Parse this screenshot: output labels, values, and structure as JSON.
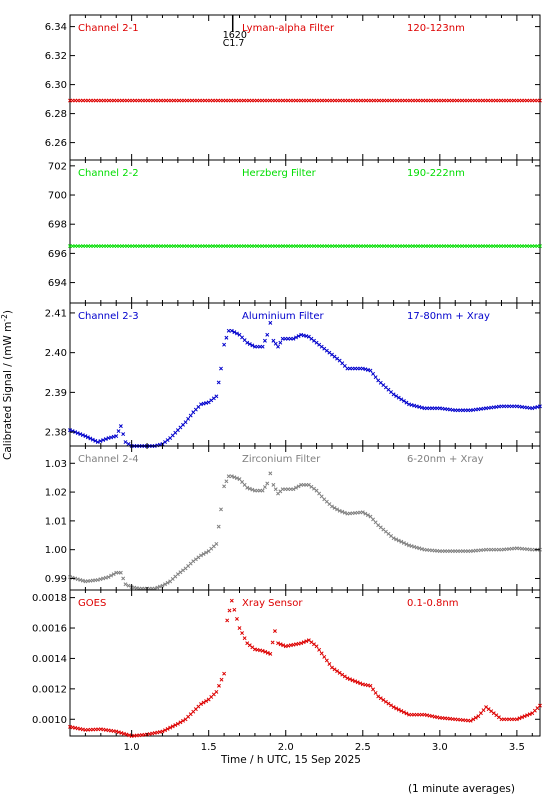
{
  "figure": {
    "ylabel": "Calibrated Signal / (mW m",
    "ylabel_sup": "-2",
    "ylabel_close": ")",
    "xlabel": "Time / h UTC, 15 Sep 2025",
    "footnote": "(1 minute averages)",
    "marker_labels": [
      "1620",
      "C1.7"
    ],
    "x_ticks": [
      "1.0",
      "1.5",
      "2.0",
      "2.5",
      "3.0",
      "3.5"
    ]
  },
  "chart_data": [
    {
      "type": "scatter",
      "panel": "Channel 2-1",
      "labels": [
        "Channel 2-1",
        "Lyman-alpha Filter",
        "120-123nm"
      ],
      "color": "#dd0000",
      "xlim": [
        0.6,
        3.65
      ],
      "ylim": [
        6.248,
        6.348
      ],
      "ytick_values": [
        6.26,
        6.28,
        6.3,
        6.32,
        6.34
      ],
      "ytick_labels": [
        "6.26",
        "6.28",
        "6.30",
        "6.32",
        "6.34"
      ],
      "x": [
        0.6,
        3.65
      ],
      "y": [
        6.289,
        6.289
      ]
    },
    {
      "type": "scatter",
      "panel": "Channel 2-2",
      "labels": [
        "Channel 2-2",
        "Herzberg Filter",
        "190-222nm"
      ],
      "color": "#00dd00",
      "xlim": [
        0.6,
        3.65
      ],
      "ylim": [
        692.6,
        702.4
      ],
      "ytick_values": [
        694,
        696,
        698,
        700,
        702
      ],
      "ytick_labels": [
        "694",
        "696",
        "698",
        "700",
        "702"
      ],
      "x": [
        0.6,
        3.65
      ],
      "y": [
        696.5,
        696.5
      ]
    },
    {
      "type": "scatter",
      "panel": "Channel 2-3",
      "labels": [
        "Channel 2-3",
        "Aluminium Filter",
        "17-80nm + Xray"
      ],
      "color": "#0000cc",
      "xlim": [
        0.6,
        3.65
      ],
      "ylim": [
        2.3765,
        2.4125
      ],
      "ytick_values": [
        2.38,
        2.39,
        2.4,
        2.41
      ],
      "ytick_labels": [
        "2.38",
        "2.39",
        "2.40",
        "2.41"
      ],
      "x": [
        0.6,
        0.7,
        0.78,
        0.85,
        0.9,
        0.93,
        0.96,
        1.0,
        1.05,
        1.15,
        1.2,
        1.25,
        1.3,
        1.35,
        1.4,
        1.45,
        1.5,
        1.55,
        1.58,
        1.6,
        1.63,
        1.65,
        1.7,
        1.75,
        1.8,
        1.85,
        1.88,
        1.9,
        1.92,
        1.95,
        1.98,
        2.05,
        2.1,
        2.15,
        2.2,
        2.25,
        2.3,
        2.35,
        2.4,
        2.5,
        2.55,
        2.6,
        2.7,
        2.8,
        2.9,
        3.0,
        3.1,
        3.2,
        3.3,
        3.4,
        3.5,
        3.6,
        3.65
      ],
      "y": [
        2.3805,
        2.379,
        2.3775,
        2.3785,
        2.379,
        2.3815,
        2.3775,
        2.3765,
        2.3765,
        2.3765,
        2.377,
        2.3785,
        2.3805,
        2.3825,
        2.385,
        2.387,
        2.3875,
        2.389,
        2.396,
        2.402,
        2.4055,
        2.4055,
        2.4045,
        2.4025,
        2.4015,
        2.4015,
        2.4045,
        2.4075,
        2.403,
        2.4015,
        2.4035,
        2.4035,
        2.4045,
        2.404,
        2.4025,
        2.401,
        2.3995,
        2.398,
        2.396,
        2.396,
        2.3955,
        2.393,
        2.3895,
        2.387,
        2.386,
        2.386,
        2.3855,
        2.3855,
        2.386,
        2.3865,
        2.3865,
        2.386,
        2.3865
      ]
    },
    {
      "type": "scatter",
      "panel": "Channel 2-4",
      "labels": [
        "Channel 2-4",
        "Zirconium Filter",
        "6-20nm + Xray"
      ],
      "color": "#808080",
      "xlim": [
        0.6,
        3.65
      ],
      "ylim": [
        0.986,
        1.036
      ],
      "ytick_values": [
        0.99,
        1.0,
        1.01,
        1.02,
        1.03
      ],
      "ytick_labels": [
        "0.99",
        "1.00",
        "1.01",
        "1.02",
        "1.03"
      ],
      "x": [
        0.6,
        0.7,
        0.78,
        0.85,
        0.9,
        0.93,
        0.96,
        1.0,
        1.05,
        1.15,
        1.2,
        1.25,
        1.3,
        1.35,
        1.4,
        1.45,
        1.5,
        1.55,
        1.58,
        1.6,
        1.63,
        1.65,
        1.7,
        1.75,
        1.8,
        1.85,
        1.88,
        1.9,
        1.92,
        1.95,
        1.98,
        2.05,
        2.1,
        2.15,
        2.2,
        2.25,
        2.3,
        2.35,
        2.4,
        2.5,
        2.55,
        2.6,
        2.7,
        2.8,
        2.9,
        3.0,
        3.1,
        3.2,
        3.3,
        3.4,
        3.5,
        3.6,
        3.65
      ],
      "y": [
        0.9905,
        0.989,
        0.9895,
        0.9905,
        0.992,
        0.992,
        0.988,
        0.987,
        0.9865,
        0.9865,
        0.9875,
        0.989,
        0.9915,
        0.9935,
        0.996,
        0.998,
        0.9995,
        1.002,
        1.014,
        1.022,
        1.0255,
        1.0255,
        1.0245,
        1.0215,
        1.0205,
        1.0205,
        1.023,
        1.0265,
        1.0225,
        1.0195,
        1.021,
        1.021,
        1.0225,
        1.0225,
        1.0205,
        1.0175,
        1.015,
        1.0135,
        1.0125,
        1.013,
        1.0115,
        1.0085,
        1.004,
        1.0015,
        1.0,
        0.9995,
        0.9995,
        0.9995,
        1.0,
        1.0,
        1.0005,
        1.0,
        1.0
      ]
    },
    {
      "type": "scatter",
      "panel": "GOES",
      "labels": [
        "GOES",
        "Xray Sensor",
        "0.1-0.8nm"
      ],
      "color": "#dd0000",
      "xlim": [
        0.6,
        3.65
      ],
      "ylim": [
        0.00089,
        0.00185
      ],
      "ytick_values": [
        0.001,
        0.0012,
        0.0014,
        0.0016,
        0.0018
      ],
      "ytick_labels": [
        "0.0010",
        "0.0012",
        "0.0014",
        "0.0016",
        "0.0018"
      ],
      "x": [
        0.6,
        0.7,
        0.8,
        0.9,
        1.0,
        1.1,
        1.2,
        1.3,
        1.35,
        1.4,
        1.45,
        1.5,
        1.55,
        1.6,
        1.62,
        1.65,
        1.7,
        1.75,
        1.8,
        1.85,
        1.9,
        1.93,
        1.95,
        2.0,
        2.05,
        2.1,
        2.15,
        2.2,
        2.3,
        2.4,
        2.5,
        2.55,
        2.6,
        2.7,
        2.8,
        2.9,
        3.0,
        3.1,
        3.2,
        3.25,
        3.3,
        3.4,
        3.5,
        3.6,
        3.65
      ],
      "y": [
        0.00095,
        0.00093,
        0.000935,
        0.00092,
        0.00089,
        0.0009,
        0.00092,
        0.00097,
        0.001,
        0.00105,
        0.0011,
        0.00113,
        0.00118,
        0.0013,
        0.00165,
        0.00178,
        0.0016,
        0.0015,
        0.00146,
        0.00145,
        0.00143,
        0.00158,
        0.0015,
        0.00148,
        0.00149,
        0.0015,
        0.00152,
        0.00148,
        0.00134,
        0.00127,
        0.00123,
        0.00122,
        0.00115,
        0.00108,
        0.00103,
        0.00103,
        0.00101,
        0.001,
        0.00099,
        0.00102,
        0.00108,
        0.001,
        0.001,
        0.00104,
        0.00109
      ]
    }
  ]
}
